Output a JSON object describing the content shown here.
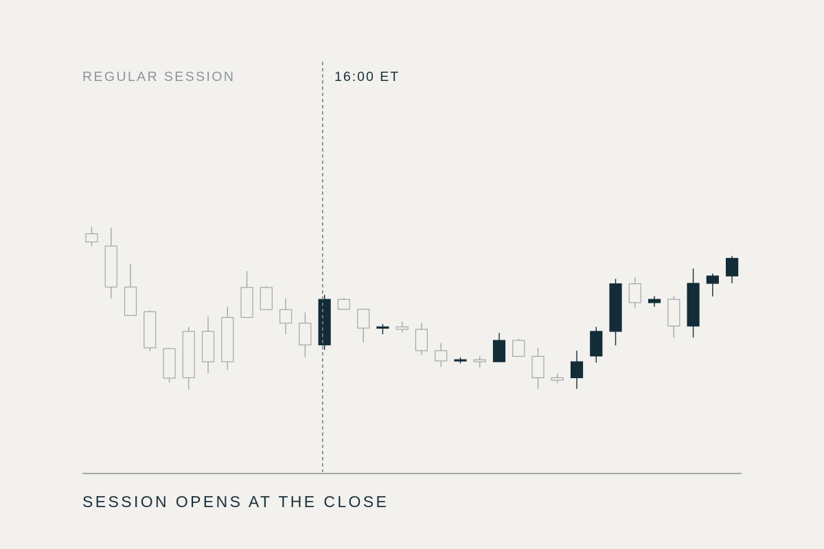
{
  "labels": {
    "left_region": "REGULAR SESSION",
    "marker": "16:00 ET",
    "caption": "SESSION OPENS AT THE CLOSE"
  },
  "colors": {
    "background": "#f3f1ee",
    "regular_candle": "#a3a6a6",
    "extended_up": "#132c38",
    "extended_down": "#a3a6a6",
    "baseline": "#8b9194",
    "marker_line": "#7d8082"
  },
  "chart_data": {
    "type": "candlestick",
    "title": "",
    "xlabel": "",
    "ylabel": "",
    "ylim": [
      0,
      100
    ],
    "grid": false,
    "marker_index": 12,
    "candles": [
      {
        "open": 58.1,
        "high": 59.8,
        "low": 55.0,
        "close": 56.1,
        "session": "regular"
      },
      {
        "open": 55.1,
        "high": 59.6,
        "low": 42.3,
        "close": 45.1,
        "session": "regular"
      },
      {
        "open": 45.1,
        "high": 50.7,
        "low": 38.4,
        "close": 38.2,
        "session": "regular"
      },
      {
        "open": 39.1,
        "high": 39.4,
        "low": 29.5,
        "close": 30.3,
        "session": "regular"
      },
      {
        "open": 30.1,
        "high": 30.3,
        "low": 21.8,
        "close": 22.9,
        "session": "regular"
      },
      {
        "open": 23.0,
        "high": 35.4,
        "low": 20.1,
        "close": 34.3,
        "session": "regular"
      },
      {
        "open": 26.9,
        "high": 37.9,
        "low": 24.1,
        "close": 34.3,
        "session": "regular"
      },
      {
        "open": 26.9,
        "high": 40.3,
        "low": 24.9,
        "close": 37.7,
        "session": "regular"
      },
      {
        "open": 37.7,
        "high": 49.0,
        "low": 37.7,
        "close": 45.0,
        "session": "regular"
      },
      {
        "open": 45.0,
        "high": 45.4,
        "low": 39.6,
        "close": 39.6,
        "session": "regular"
      },
      {
        "open": 39.6,
        "high": 42.4,
        "low": 33.6,
        "close": 36.3,
        "session": "regular"
      },
      {
        "open": 36.3,
        "high": 38.9,
        "low": 28.0,
        "close": 31.0,
        "session": "regular"
      },
      {
        "open": 31.0,
        "high": 43.2,
        "low": 29.8,
        "close": 42.1,
        "session": "extended"
      },
      {
        "open": 42.1,
        "high": 42.5,
        "low": 39.8,
        "close": 39.7,
        "session": "extended"
      },
      {
        "open": 39.7,
        "high": 39.8,
        "low": 31.6,
        "close": 35.1,
        "session": "extended"
      },
      {
        "open": 35.1,
        "high": 36.1,
        "low": 33.6,
        "close": 35.4,
        "session": "extended"
      },
      {
        "open": 35.4,
        "high": 36.7,
        "low": 34.1,
        "close": 34.8,
        "session": "extended"
      },
      {
        "open": 34.8,
        "high": 36.3,
        "low": 28.5,
        "close": 29.6,
        "session": "extended"
      },
      {
        "open": 29.6,
        "high": 31.5,
        "low": 25.7,
        "close": 27.1,
        "session": "extended"
      },
      {
        "open": 27.1,
        "high": 28.0,
        "low": 26.5,
        "close": 27.4,
        "session": "extended"
      },
      {
        "open": 27.4,
        "high": 28.3,
        "low": 25.5,
        "close": 26.9,
        "session": "extended"
      },
      {
        "open": 26.9,
        "high": 33.9,
        "low": 26.9,
        "close": 32.1,
        "session": "extended"
      },
      {
        "open": 32.1,
        "high": 32.5,
        "low": 28.2,
        "close": 28.2,
        "session": "extended"
      },
      {
        "open": 28.2,
        "high": 30.3,
        "low": 20.3,
        "close": 23.0,
        "session": "extended"
      },
      {
        "open": 23.0,
        "high": 24.0,
        "low": 21.7,
        "close": 22.4,
        "session": "extended"
      },
      {
        "open": 23.0,
        "high": 29.6,
        "low": 20.3,
        "close": 26.9,
        "session": "extended"
      },
      {
        "open": 28.3,
        "high": 35.4,
        "low": 26.7,
        "close": 34.3,
        "session": "extended"
      },
      {
        "open": 34.3,
        "high": 47.1,
        "low": 30.9,
        "close": 45.9,
        "session": "extended"
      },
      {
        "open": 45.9,
        "high": 47.5,
        "low": 40.1,
        "close": 41.3,
        "session": "extended"
      },
      {
        "open": 41.3,
        "high": 42.9,
        "low": 40.3,
        "close": 42.1,
        "session": "extended"
      },
      {
        "open": 42.1,
        "high": 42.9,
        "low": 32.8,
        "close": 35.6,
        "session": "extended"
      },
      {
        "open": 35.6,
        "high": 49.6,
        "low": 32.8,
        "close": 46.0,
        "session": "extended"
      },
      {
        "open": 46.0,
        "high": 48.4,
        "low": 42.8,
        "close": 47.8,
        "session": "extended"
      },
      {
        "open": 47.8,
        "high": 52.7,
        "low": 46.0,
        "close": 52.1,
        "session": "extended"
      }
    ]
  }
}
